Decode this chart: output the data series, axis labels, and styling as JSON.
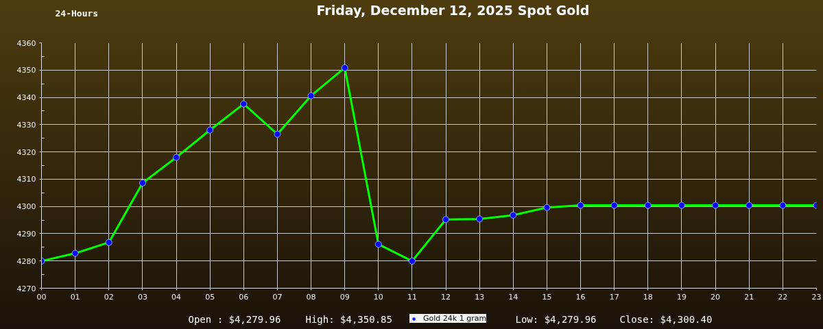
{
  "chart_data": {
    "type": "line",
    "title": "Friday, December 12, 2025 Spot Gold",
    "x": [
      0,
      1,
      2,
      3,
      4,
      5,
      6,
      7,
      8,
      9,
      10,
      11,
      12,
      13,
      14,
      15,
      16,
      17,
      18,
      19,
      20,
      21,
      22,
      23
    ],
    "xlim": [
      0,
      23
    ],
    "xticks": [
      {
        "value": 0,
        "label": "00"
      },
      {
        "value": 1,
        "label": "01"
      },
      {
        "value": 2,
        "label": "02"
      },
      {
        "value": 3,
        "label": "03"
      },
      {
        "value": 4,
        "label": "04"
      },
      {
        "value": 5,
        "label": "05"
      },
      {
        "value": 6,
        "label": "06"
      },
      {
        "value": 7,
        "label": "07"
      },
      {
        "value": 8,
        "label": "08"
      },
      {
        "value": 9,
        "label": "09"
      },
      10,
      11,
      12,
      13,
      14,
      15,
      16,
      17,
      18,
      19,
      20,
      21,
      22,
      23
    ],
    "ylim": [
      4270,
      4360
    ],
    "yticks": [
      4270,
      4280,
      4290,
      4300,
      4310,
      4320,
      4330,
      4340,
      4350,
      4360
    ],
    "series": [
      {
        "name": "Gold 24k 1 gram",
        "color": "#00ff00",
        "colors": [
          "#0000ff",
          "#0000ff",
          "#0000ff",
          "#0000ff",
          "#0000ff",
          "#0000ff",
          "#0000ff",
          "#0000ff",
          "#0000ff",
          "#0000ff",
          "#0000ff",
          "#0000ff",
          "#0000ff",
          "#0000ff",
          "#0000ff",
          "#0000ff",
          "#0000ff",
          "#0000ff",
          "#0000ff",
          "#0000ff",
          "#0000ff",
          "#0000ff",
          "#0000ff",
          "#0000ff"
        ],
        "values": [
          4279.96,
          4282.8,
          4286.8,
          4308.6,
          4318.0,
          4328.0,
          4337.6,
          4326.5,
          4340.6,
          4350.85,
          4286.1,
          4279.96,
          4295.2,
          4295.4,
          4296.8,
          4299.6,
          4300.4,
          4300.4,
          4300.4,
          4300.4,
          4300.4,
          4300.4,
          4300.4,
          4300.4
        ]
      }
    ],
    "marker": "circle",
    "line_style": "solid",
    "grid": true,
    "legend": "bottom",
    "annotations": [
      "24-Hours",
      "Open : $4,279.96",
      "High: $4,350.85",
      "Low: $4,279.96",
      "Close: $4,300.40"
    ]
  }
}
